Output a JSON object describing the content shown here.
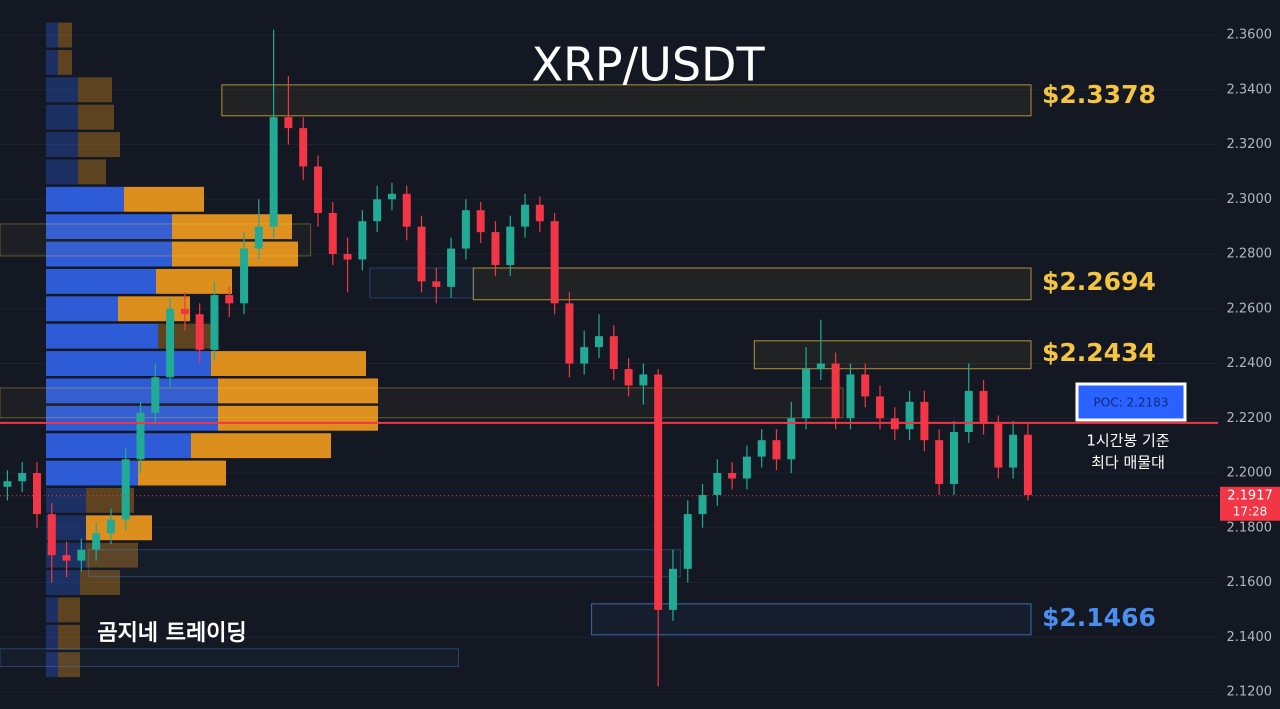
{
  "chart_data": {
    "type": "candlestick",
    "title": "XRP/USDT",
    "watermark": "곰지네 트레이딩",
    "ylim": [
      2.1138,
      2.3728
    ],
    "yticks": [
      {
        "value": 2.12,
        "label": "2.1200"
      },
      {
        "value": 2.14,
        "label": "2.1400"
      },
      {
        "value": 2.16,
        "label": "2.1600"
      },
      {
        "value": 2.18,
        "label": "2.1800"
      },
      {
        "value": 2.2,
        "label": "2.2000"
      },
      {
        "value": 2.22,
        "label": "2.2200"
      },
      {
        "value": 2.24,
        "label": "2.2400"
      },
      {
        "value": 2.26,
        "label": "2.2600"
      },
      {
        "value": 2.28,
        "label": "2.2800"
      },
      {
        "value": 2.3,
        "label": "2.3000"
      },
      {
        "value": 2.32,
        "label": "2.3200"
      },
      {
        "value": 2.34,
        "label": "2.3400"
      },
      {
        "value": 2.36,
        "label": "2.3600"
      }
    ],
    "up_color": "#22ab94",
    "down_color": "#f23645",
    "open": [
      2.195,
      2.197,
      2.2,
      2.185,
      2.17,
      2.168,
      2.172,
      2.178,
      2.183,
      2.205,
      2.222,
      2.235,
      2.26,
      2.258,
      2.245,
      2.265,
      2.262,
      2.282,
      2.29,
      2.33,
      2.326,
      2.312,
      2.295,
      2.28,
      2.278,
      2.292,
      2.3,
      2.302,
      2.29,
      2.27,
      2.268,
      2.282,
      2.296,
      2.288,
      2.276,
      2.29,
      2.298,
      2.292,
      2.262,
      2.24,
      2.246,
      2.25,
      2.238,
      2.232,
      2.236,
      2.15,
      2.165,
      2.185,
      2.192,
      2.2,
      2.198,
      2.206,
      2.212,
      2.205,
      2.22,
      2.238,
      2.24,
      2.22,
      2.236,
      2.228,
      2.22,
      2.216,
      2.226,
      2.212,
      2.196,
      2.215,
      2.23,
      2.218,
      2.202,
      2.214
    ],
    "high": [
      2.201,
      2.204,
      2.204,
      2.189,
      2.175,
      2.176,
      2.182,
      2.187,
      2.209,
      2.226,
      2.24,
      2.264,
      2.266,
      2.262,
      2.27,
      2.268,
      2.288,
      2.3,
      2.362,
      2.345,
      2.33,
      2.316,
      2.299,
      2.286,
      2.296,
      2.305,
      2.306,
      2.305,
      2.294,
      2.275,
      2.286,
      2.3,
      2.299,
      2.292,
      2.294,
      2.302,
      2.301,
      2.295,
      2.266,
      2.252,
      2.258,
      2.254,
      2.242,
      2.24,
      2.238,
      2.172,
      2.19,
      2.196,
      2.205,
      2.204,
      2.21,
      2.216,
      2.216,
      2.226,
      2.246,
      2.256,
      2.244,
      2.24,
      2.24,
      2.232,
      2.224,
      2.23,
      2.23,
      2.216,
      2.219,
      2.24,
      2.234,
      2.221,
      2.219,
      2.218
    ],
    "low": [
      2.19,
      2.193,
      2.18,
      2.16,
      2.162,
      2.164,
      2.168,
      2.174,
      2.179,
      2.2,
      2.218,
      2.231,
      2.252,
      2.24,
      2.241,
      2.257,
      2.258,
      2.278,
      2.286,
      2.32,
      2.307,
      2.29,
      2.276,
      2.266,
      2.274,
      2.288,
      2.296,
      2.285,
      2.266,
      2.262,
      2.264,
      2.278,
      2.284,
      2.272,
      2.272,
      2.286,
      2.288,
      2.258,
      2.235,
      2.236,
      2.242,
      2.234,
      2.228,
      2.225,
      2.122,
      2.146,
      2.16,
      2.18,
      2.188,
      2.194,
      2.194,
      2.202,
      2.201,
      2.2,
      2.216,
      2.234,
      2.216,
      2.216,
      2.224,
      2.216,
      2.212,
      2.212,
      2.208,
      2.192,
      2.192,
      2.211,
      2.214,
      2.198,
      2.198,
      2.19
    ],
    "close": [
      2.197,
      2.2,
      2.185,
      2.17,
      2.168,
      2.172,
      2.178,
      2.183,
      2.205,
      2.222,
      2.235,
      2.26,
      2.258,
      2.245,
      2.265,
      2.262,
      2.282,
      2.29,
      2.33,
      2.326,
      2.312,
      2.295,
      2.28,
      2.278,
      2.292,
      2.3,
      2.302,
      2.29,
      2.27,
      2.268,
      2.282,
      2.296,
      2.288,
      2.276,
      2.29,
      2.298,
      2.292,
      2.262,
      2.24,
      2.246,
      2.25,
      2.238,
      2.232,
      2.236,
      2.15,
      2.165,
      2.185,
      2.192,
      2.2,
      2.198,
      2.206,
      2.212,
      2.205,
      2.22,
      2.238,
      2.24,
      2.22,
      2.236,
      2.228,
      2.22,
      2.216,
      2.226,
      2.212,
      2.196,
      2.215,
      2.23,
      2.218,
      2.202,
      2.214,
      2.192
    ],
    "volume_profile": {
      "buy_color": "#2f5fe0",
      "sell_color": "#e8961e",
      "levels": [
        2.36,
        2.35,
        2.34,
        2.33,
        2.32,
        2.31,
        2.3,
        2.29,
        2.28,
        2.27,
        2.26,
        2.25,
        2.24,
        2.23,
        2.22,
        2.21,
        2.2,
        2.19,
        2.18,
        2.17,
        2.16,
        2.15,
        2.14,
        2.13
      ],
      "buy": [
        12,
        12,
        32,
        32,
        32,
        32,
        78,
        126,
        126,
        110,
        72,
        112,
        165,
        172,
        172,
        145,
        92,
        40,
        40,
        40,
        34,
        12,
        12,
        12
      ],
      "sell": [
        14,
        14,
        34,
        36,
        42,
        28,
        80,
        120,
        126,
        76,
        72,
        60,
        155,
        160,
        160,
        140,
        88,
        48,
        66,
        52,
        40,
        22,
        22,
        22
      ]
    },
    "zones": [
      {
        "value": 2.3378,
        "label": "$2.3378",
        "low": 2.3305,
        "high": 2.3418,
        "from": 15,
        "to": 70,
        "color": "#f4c542"
      },
      {
        "value": 2.2694,
        "label": "$2.2694",
        "low": 2.2633,
        "high": 2.2749,
        "from": 32,
        "to": 70,
        "color": "#f4c542"
      },
      {
        "value": 2.2434,
        "label": "$2.2434",
        "low": 2.2381,
        "high": 2.2483,
        "from": 51,
        "to": 70,
        "color": "#f4c542"
      },
      {
        "value": 2.1466,
        "label": "$2.1466",
        "low": 2.1409,
        "high": 2.1522,
        "from": 40,
        "to": 70,
        "color": "#4a8ff0"
      },
      {
        "low": 2.2793,
        "high": 2.291,
        "from": 0,
        "to": 21,
        "color": "#f4c542"
      },
      {
        "low": 2.2202,
        "high": 2.2311,
        "from": 0,
        "to": 57,
        "color": "#f4c542"
      },
      {
        "low": 2.264,
        "high": 2.2749,
        "from": 25,
        "to": 32,
        "color": "#4a8ff0"
      },
      {
        "low": 2.1621,
        "high": 2.172,
        "from": 6,
        "to": 46,
        "color": "#4a8ff0"
      },
      {
        "low": 2.1293,
        "high": 2.1358,
        "from": 0,
        "to": 31,
        "color": "#4a8ff0"
      }
    ],
    "poc": {
      "value": 2.2183,
      "label": "POC: 2.2183",
      "color": "#f23645"
    },
    "poc_note": [
      "1시간봉 기준",
      "최다 매물대"
    ],
    "last_price": 2.1917,
    "countdown": "17:28"
  }
}
